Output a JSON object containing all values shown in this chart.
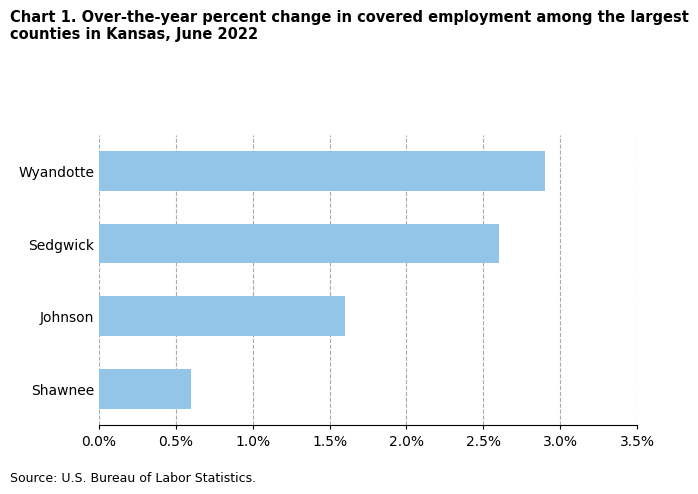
{
  "title_line1": "Chart 1. Over-the-year percent change in covered employment among the largest",
  "title_line2": "counties in Kansas, June 2022",
  "counties": [
    "Wyandotte",
    "Sedgwick",
    "Johnson",
    "Shawnee"
  ],
  "values": [
    0.029,
    0.026,
    0.016,
    0.006
  ],
  "bar_color": "#92C5E8",
  "xlim": [
    0,
    0.035
  ],
  "xticks": [
    0.0,
    0.005,
    0.01,
    0.015,
    0.02,
    0.025,
    0.03,
    0.035
  ],
  "source": "Source: U.S. Bureau of Labor Statistics.",
  "title_fontsize": 10.5,
  "tick_fontsize": 10,
  "source_fontsize": 9,
  "background_color": "#ffffff",
  "grid_color": "#aaaaaa",
  "bar_height": 0.55
}
